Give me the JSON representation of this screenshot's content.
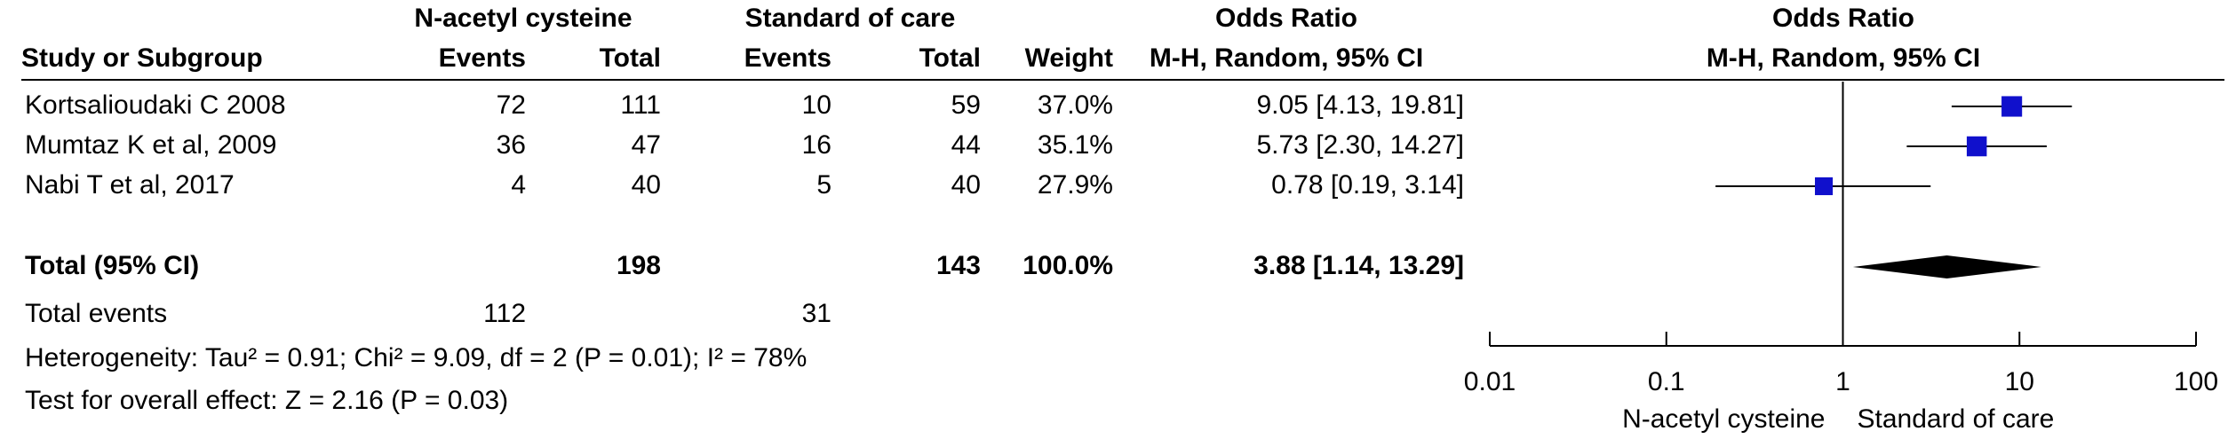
{
  "chart_data": {
    "type": "forest",
    "group_headers": [
      "N-acetyl cysteine",
      "Standard of care",
      "Odds Ratio",
      "Odds Ratio"
    ],
    "columns": [
      "Study or Subgroup",
      "Events",
      "Total",
      "Events",
      "Total",
      "Weight",
      "M-H, Random, 95% CI",
      "M-H, Random, 95% CI"
    ],
    "studies": [
      "Kortsalioudaki C 2008",
      "Mumtaz K et al, 2009",
      "Nabi T et al, 2017"
    ],
    "events_1": [
      72,
      36,
      4
    ],
    "total_1": [
      111,
      47,
      40
    ],
    "events_2": [
      10,
      16,
      5
    ],
    "total_2": [
      59,
      44,
      40
    ],
    "weights": [
      37.0,
      35.1,
      27.9
    ],
    "weight_labels": [
      "37.0%",
      "35.1%",
      "27.9%"
    ],
    "or": [
      9.05,
      5.73,
      0.78
    ],
    "lower": [
      4.13,
      2.3,
      0.19
    ],
    "upper": [
      19.81,
      14.27,
      3.14
    ],
    "or_labels": [
      "9.05 [4.13, 19.81]",
      "5.73 [2.30, 14.27]",
      "0.78 [0.19, 3.14]"
    ],
    "total": {
      "label": "Total (95% CI)",
      "total_1": 198,
      "total_2": 143,
      "weight": "100.0%",
      "or": 3.88,
      "lower": 1.14,
      "upper": 13.29,
      "or_label": "3.88 [1.14, 13.29]"
    },
    "total_events": {
      "label": "Total events",
      "events_1": 112,
      "events_2": 31
    },
    "heterogeneity": "Heterogeneity: Tau² = 0.91; Chi² = 9.09, df = 2 (P = 0.01); I² = 78%",
    "overall_effect": "Test for overall effect: Z = 2.16 (P = 0.03)",
    "xlim": [
      0.01,
      100
    ],
    "xticks": [
      0.01,
      0.1,
      1,
      10,
      100
    ],
    "log_scale": true,
    "x_labels": [
      "N-acetyl cysteine",
      "Standard of care"
    ],
    "color": "#1010cc"
  }
}
